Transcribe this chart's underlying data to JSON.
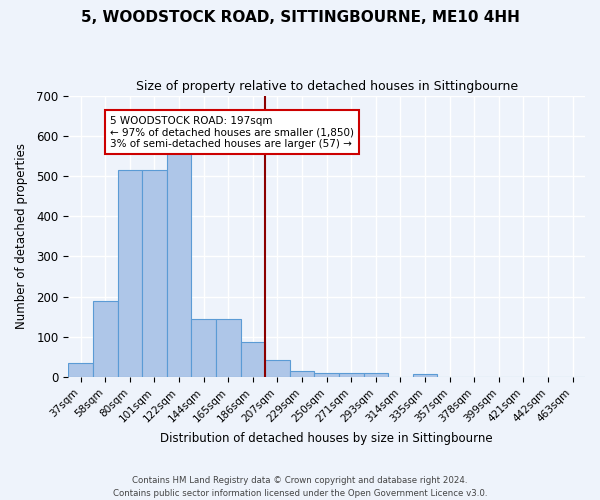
{
  "title": "5, WOODSTOCK ROAD, SITTINGBOURNE, ME10 4HH",
  "subtitle": "Size of property relative to detached houses in Sittingbourne",
  "xlabel": "Distribution of detached houses by size in Sittingbourne",
  "ylabel": "Number of detached properties",
  "categories": [
    "37sqm",
    "58sqm",
    "80sqm",
    "101sqm",
    "122sqm",
    "144sqm",
    "165sqm",
    "186sqm",
    "207sqm",
    "229sqm",
    "250sqm",
    "271sqm",
    "293sqm",
    "314sqm",
    "335sqm",
    "357sqm",
    "378sqm",
    "399sqm",
    "421sqm",
    "442sqm",
    "463sqm"
  ],
  "values": [
    35,
    190,
    515,
    515,
    565,
    145,
    145,
    88,
    43,
    15,
    10,
    10,
    10,
    0,
    7,
    0,
    0,
    0,
    0,
    0,
    0
  ],
  "bar_color": "#aec6e8",
  "bar_edge_color": "#5b9bd5",
  "vline_x": 7.5,
  "vline_color": "#8b0000",
  "annotation_title": "5 WOODSTOCK ROAD: 197sqm",
  "annotation_line1": "← 97% of detached houses are smaller (1,850)",
  "annotation_line2": "3% of semi-detached houses are larger (57) →",
  "annotation_box_color": "#ffffff",
  "annotation_box_edge_color": "#cc0000",
  "bg_color": "#eef3fb",
  "grid_color": "#ffffff",
  "footer": "Contains HM Land Registry data © Crown copyright and database right 2024.\nContains public sector information licensed under the Open Government Licence v3.0.",
  "ylim": [
    0,
    700
  ],
  "yticks": [
    0,
    100,
    200,
    300,
    400,
    500,
    600,
    700
  ]
}
